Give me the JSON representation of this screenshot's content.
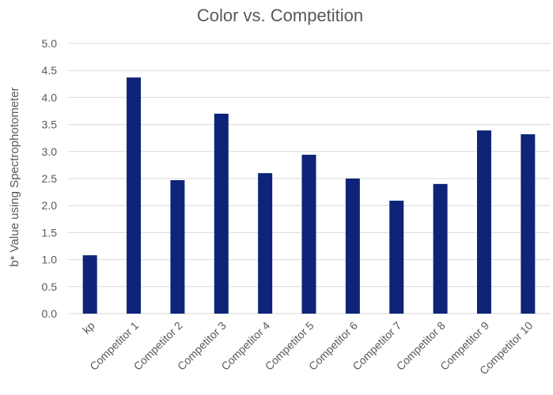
{
  "chart_data": {
    "type": "bar",
    "title": "Color vs. Competition",
    "xlabel": "",
    "ylabel": "b* Value using Spectrophotometer",
    "categories": [
      "kp",
      "Competitor 1",
      "Competitor 2",
      "Competitor 3",
      "Competitor 4",
      "Competitor 5",
      "Competitor 6",
      "Competitor 7",
      "Competitor 8",
      "Competitor 9",
      "Competitor 10"
    ],
    "values": [
      1.08,
      4.37,
      2.47,
      3.7,
      2.6,
      2.94,
      2.5,
      2.09,
      2.4,
      3.39,
      3.32
    ],
    "ylim": [
      0,
      5
    ],
    "yticks": [
      "0.0",
      "0.5",
      "1.0",
      "1.5",
      "2.0",
      "2.5",
      "3.0",
      "3.5",
      "4.0",
      "4.5",
      "5.0"
    ],
    "grid": true,
    "legend": "none",
    "bar_color": "#0d2478",
    "grid_color": "#d9d9d9"
  }
}
